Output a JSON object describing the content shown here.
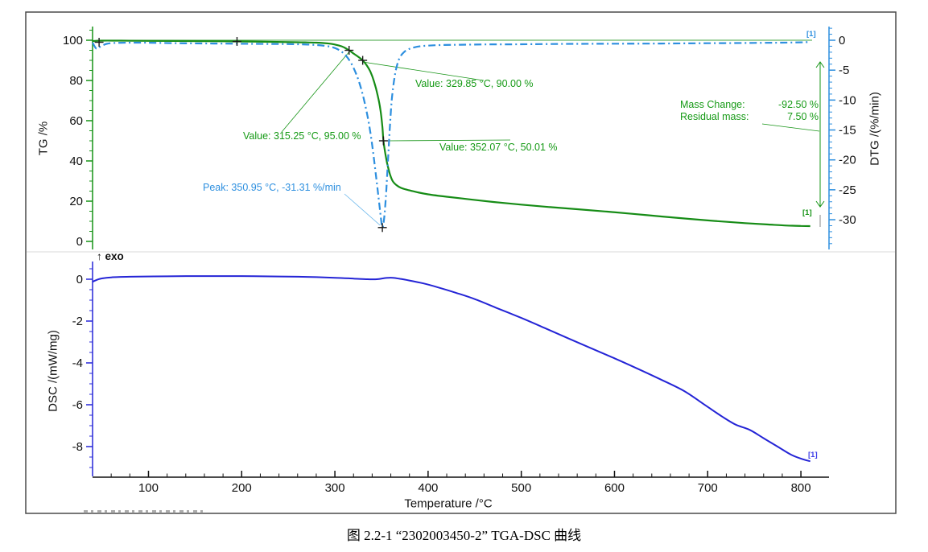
{
  "caption": "图 2.2-1 “2302003450-2” TGA-DSC 曲线",
  "labels": {
    "exo": "↑ exo"
  },
  "chart_data": [
    {
      "id": "tg-dtg-panel",
      "type": "line",
      "x": {
        "label": "Temperature /°C",
        "range": [
          40,
          812
        ],
        "ticks": [
          100,
          200,
          300,
          400,
          500,
          600,
          700,
          800
        ],
        "minor_step": 20
      },
      "y_left": {
        "label": "TG /%",
        "range": [
          0,
          105
        ],
        "ticks": [
          100,
          80,
          60,
          40,
          20,
          0
        ],
        "minor_step": 5,
        "color": "#169416"
      },
      "y_right": {
        "label": "DTG /(%/min)",
        "range": [
          2,
          -35
        ],
        "ticks": [
          0,
          -5,
          -10,
          -15,
          -20,
          -25,
          -30
        ],
        "minor_step": 1,
        "color": "#2d8fdf"
      },
      "series": [
        {
          "name": "TG",
          "unit": "%",
          "color": "#168c16",
          "style": "solid",
          "points": [
            [
              40,
              99.6
            ],
            [
              50,
              99.8
            ],
            [
              70,
              99.8
            ],
            [
              100,
              99.7
            ],
            [
              140,
              99.6
            ],
            [
              180,
              99.5
            ],
            [
              195,
              99.4
            ],
            [
              230,
              99.2
            ],
            [
              260,
              99.0
            ],
            [
              280,
              98.8
            ],
            [
              295,
              98.3
            ],
            [
              305,
              97.3
            ],
            [
              310,
              96.4
            ],
            [
              315.25,
              95.0
            ],
            [
              320,
              93.4
            ],
            [
              325,
              91.8
            ],
            [
              329.85,
              90.0
            ],
            [
              334,
              87.6
            ],
            [
              338,
              84.5
            ],
            [
              342,
              79.5
            ],
            [
              346,
              72.5
            ],
            [
              349,
              65
            ],
            [
              351,
              57
            ],
            [
              352.07,
              50.0
            ],
            [
              354,
              44
            ],
            [
              356,
              39
            ],
            [
              359,
              33.5
            ],
            [
              362,
              30
            ],
            [
              366,
              28
            ],
            [
              371,
              26.6
            ],
            [
              378,
              25.6
            ],
            [
              388,
              24.5
            ],
            [
              400,
              23.4
            ],
            [
              420,
              22.2
            ],
            [
              445,
              20.9
            ],
            [
              470,
              19.6
            ],
            [
              500,
              18.3
            ],
            [
              530,
              17.1
            ],
            [
              560,
              16.0
            ],
            [
              590,
              14.9
            ],
            [
              620,
              13.7
            ],
            [
              650,
              12.4
            ],
            [
              680,
              11.2
            ],
            [
              710,
              10.1
            ],
            [
              740,
              9.1
            ],
            [
              765,
              8.4
            ],
            [
              785,
              7.9
            ],
            [
              800,
              7.7
            ],
            [
              810,
              7.6
            ]
          ]
        },
        {
          "name": "DTG",
          "unit": "%/min",
          "color": "#2d8fdf",
          "style": "dashdot",
          "points": [
            [
              40,
              -0.4
            ],
            [
              44,
              -1.4
            ],
            [
              48,
              -1.1
            ],
            [
              55,
              -0.6
            ],
            [
              65,
              -0.45
            ],
            [
              90,
              -0.4
            ],
            [
              130,
              -0.5
            ],
            [
              170,
              -0.55
            ],
            [
              210,
              -0.6
            ],
            [
              250,
              -0.65
            ],
            [
              275,
              -0.75
            ],
            [
              290,
              -0.95
            ],
            [
              300,
              -1.3
            ],
            [
              308,
              -2.0
            ],
            [
              314,
              -3.0
            ],
            [
              320,
              -4.6
            ],
            [
              326,
              -7.0
            ],
            [
              331,
              -9.8
            ],
            [
              336,
              -13.5
            ],
            [
              340,
              -17.5
            ],
            [
              344,
              -22.5
            ],
            [
              347,
              -26.5
            ],
            [
              349,
              -29.2
            ],
            [
              350.95,
              -31.31
            ],
            [
              353,
              -29.5
            ],
            [
              355,
              -25.5
            ],
            [
              357,
              -20
            ],
            [
              359,
              -14.5
            ],
            [
              361,
              -10
            ],
            [
              364,
              -6.2
            ],
            [
              367,
              -4.0
            ],
            [
              370,
              -2.8
            ],
            [
              374,
              -2.0
            ],
            [
              379,
              -1.5
            ],
            [
              385,
              -1.2
            ],
            [
              392,
              -1.0
            ],
            [
              400,
              -0.9
            ],
            [
              415,
              -0.8
            ],
            [
              435,
              -0.75
            ],
            [
              460,
              -0.7
            ],
            [
              490,
              -0.68
            ],
            [
              520,
              -0.65
            ],
            [
              560,
              -0.6
            ],
            [
              600,
              -0.58
            ],
            [
              650,
              -0.55
            ],
            [
              700,
              -0.5
            ],
            [
              750,
              -0.45
            ],
            [
              780,
              -0.4
            ],
            [
              800,
              -0.35
            ],
            [
              808,
              -0.3
            ]
          ]
        }
      ],
      "markers": {
        "tg": [
          [
            47,
            99.0
          ],
          [
            195,
            99.4
          ],
          [
            315.25,
            95.0
          ],
          [
            329.85,
            90.0
          ],
          [
            352.07,
            50.01
          ]
        ],
        "dtg": [
          [
            350.95,
            -31.31
          ]
        ]
      },
      "annotations": [
        {
          "id": "value-315",
          "text": "Value: 315.25 °C, 95.00 %"
        },
        {
          "id": "value-329",
          "text": "Value: 329.85 °C, 90.00 %"
        },
        {
          "id": "value-352",
          "text": "Value: 352.07 °C, 50.01 %"
        },
        {
          "id": "peak-dtg",
          "text": "Peak: 350.95 °C, -31.31 %/min"
        },
        {
          "id": "mass-change",
          "label": "Mass Change:",
          "value": "-92.50 %"
        },
        {
          "id": "residual-mass",
          "label": "Residual mass:",
          "value": "7.50 %"
        }
      ],
      "curve_tag": "[1]",
      "reference_line_pct": 100
    },
    {
      "id": "dsc-panel",
      "type": "line",
      "y_left": {
        "label": "DSC /(mW/mg)",
        "range": [
          0.85,
          -9.4
        ],
        "ticks": [
          0,
          -2,
          -4,
          -6,
          -8
        ],
        "minor_step": 0.5,
        "color": "#2626d8"
      },
      "series": [
        {
          "name": "DSC",
          "unit": "mW/mg",
          "color": "#2424d6",
          "style": "solid",
          "points": [
            [
              40,
              -0.12
            ],
            [
              48,
              0.02
            ],
            [
              60,
              0.09
            ],
            [
              80,
              0.12
            ],
            [
              120,
              0.14
            ],
            [
              160,
              0.15
            ],
            [
              200,
              0.15
            ],
            [
              240,
              0.13
            ],
            [
              270,
              0.11
            ],
            [
              300,
              0.07
            ],
            [
              320,
              0.03
            ],
            [
              335,
              0.0
            ],
            [
              345,
              0.0
            ],
            [
              355,
              0.06
            ],
            [
              362,
              0.07
            ],
            [
              370,
              0.02
            ],
            [
              380,
              -0.06
            ],
            [
              395,
              -0.2
            ],
            [
              410,
              -0.38
            ],
            [
              430,
              -0.65
            ],
            [
              450,
              -0.95
            ],
            [
              475,
              -1.4
            ],
            [
              500,
              -1.85
            ],
            [
              525,
              -2.33
            ],
            [
              550,
              -2.82
            ],
            [
              575,
              -3.3
            ],
            [
              600,
              -3.78
            ],
            [
              625,
              -4.28
            ],
            [
              650,
              -4.8
            ],
            [
              675,
              -5.35
            ],
            [
              695,
              -5.95
            ],
            [
              715,
              -6.55
            ],
            [
              730,
              -6.95
            ],
            [
              745,
              -7.2
            ],
            [
              760,
              -7.6
            ],
            [
              775,
              -8.0
            ],
            [
              790,
              -8.4
            ],
            [
              803,
              -8.62
            ],
            [
              810,
              -8.7
            ]
          ]
        }
      ],
      "curve_tag": "[1]"
    }
  ]
}
